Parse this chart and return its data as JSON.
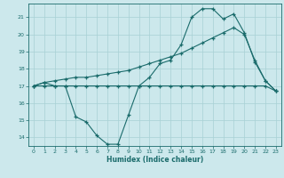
{
  "xlabel": "Humidex (Indice chaleur)",
  "bg_color": "#cce8ec",
  "grid_color": "#a8d0d4",
  "line_color": "#1a6b6b",
  "xlim": [
    -0.5,
    23.5
  ],
  "ylim": [
    13.5,
    21.8
  ],
  "yticks": [
    14,
    15,
    16,
    17,
    18,
    19,
    20,
    21
  ],
  "xticks": [
    0,
    1,
    2,
    3,
    4,
    5,
    6,
    7,
    8,
    9,
    10,
    11,
    12,
    13,
    14,
    15,
    16,
    17,
    18,
    19,
    20,
    21,
    22,
    23
  ],
  "curve_valley_x": [
    0,
    1,
    2,
    3,
    4,
    5,
    6,
    7,
    8,
    9,
    10,
    11,
    12,
    13,
    14,
    15,
    16,
    17,
    18,
    19,
    20,
    21,
    22,
    23
  ],
  "curve_valley_y": [
    17.0,
    17.2,
    17.0,
    17.0,
    15.2,
    14.9,
    14.1,
    13.6,
    13.6,
    15.3,
    17.0,
    17.5,
    18.3,
    18.5,
    19.4,
    21.0,
    21.5,
    21.5,
    20.9,
    21.2,
    20.1,
    18.4,
    17.3,
    16.7
  ],
  "curve_flat_x": [
    0,
    1,
    2,
    3,
    4,
    5,
    6,
    7,
    8,
    9,
    10,
    11,
    12,
    13,
    14,
    15,
    16,
    17,
    18,
    19,
    20,
    21,
    22,
    23
  ],
  "curve_flat_y": [
    17.0,
    17.0,
    17.0,
    17.0,
    17.0,
    17.0,
    17.0,
    17.0,
    17.0,
    17.0,
    17.0,
    17.0,
    17.0,
    17.0,
    17.0,
    17.0,
    17.0,
    17.0,
    17.0,
    17.0,
    17.0,
    17.0,
    17.0,
    16.7
  ],
  "curve_rise_x": [
    0,
    1,
    2,
    3,
    4,
    5,
    6,
    7,
    8,
    9,
    10,
    11,
    12,
    13,
    14,
    15,
    16,
    17,
    18,
    19,
    20,
    21,
    22,
    23
  ],
  "curve_rise_y": [
    17.0,
    17.2,
    17.3,
    17.4,
    17.5,
    17.5,
    17.6,
    17.7,
    17.8,
    17.9,
    18.1,
    18.3,
    18.5,
    18.7,
    18.9,
    19.2,
    19.5,
    19.8,
    20.1,
    20.4,
    20.0,
    18.5,
    17.3,
    16.7
  ]
}
